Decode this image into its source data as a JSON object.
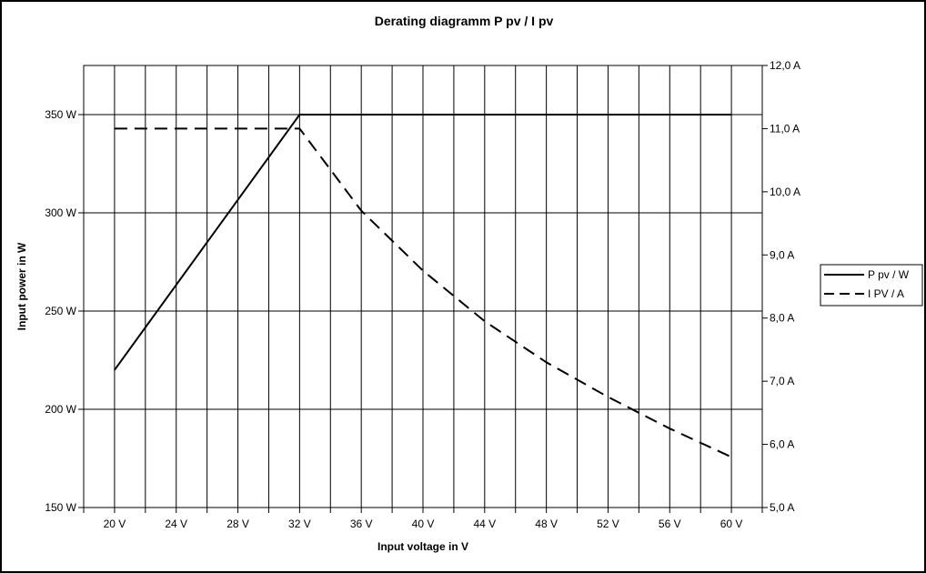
{
  "chart_data": {
    "type": "line",
    "title": "Derating diagramm P pv / I pv",
    "xlabel": "Input voltage in V",
    "ylabel_left": "Input power in W",
    "ylabel_right": "",
    "x_ticks": [
      "20 V",
      "24 V",
      "28 V",
      "32 V",
      "36 V",
      "40 V",
      "44 V",
      "48 V",
      "52 V",
      "56 V",
      "60 V"
    ],
    "y_left_ticks": [
      "150 W",
      "200 W",
      "250 W",
      "300 W",
      "350 W"
    ],
    "y_right_ticks": [
      "5,0 A",
      "6,0 A",
      "7,0 A",
      "8,0 A",
      "9,0 A",
      "10,0 A",
      "11,0 A",
      "12,0 A"
    ],
    "xlim": [
      18,
      62
    ],
    "ylim_left": [
      150,
      375
    ],
    "ylim_right": [
      5.0,
      12.0
    ],
    "grid": true,
    "legend_position": "right",
    "series": [
      {
        "name": "P pv / W",
        "axis": "left",
        "style": "solid",
        "x": [
          20,
          32,
          60
        ],
        "y": [
          220,
          350,
          350
        ]
      },
      {
        "name": "I PV / A",
        "axis": "right",
        "style": "dashed",
        "x": [
          20,
          32,
          36,
          40,
          44,
          48,
          52,
          56,
          60
        ],
        "y": [
          11.0,
          11.0,
          9.7,
          8.75,
          7.95,
          7.3,
          6.75,
          6.25,
          5.8
        ]
      }
    ]
  }
}
